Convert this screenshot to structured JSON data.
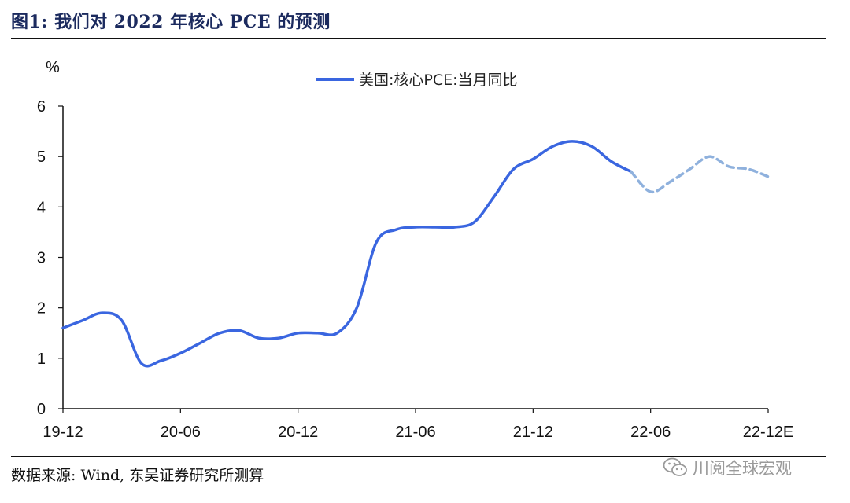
{
  "figure": {
    "title": "图1: 我们对 2022 年核心 PCE 的预测",
    "source": "数据来源: Wind, 东吴证券研究所测算",
    "watermark": "川阅全球宏观",
    "watermark_icon": "wechat-icon"
  },
  "chart_data": {
    "type": "line",
    "ylabel": "%",
    "ylim": [
      0,
      6
    ],
    "yticks": [
      "0",
      "1",
      "2",
      "3",
      "4",
      "5",
      "6"
    ],
    "xticks": [
      "19-12",
      "20-06",
      "20-12",
      "21-06",
      "21-12",
      "22-06",
      "22-12E"
    ],
    "legend_position": "top-center",
    "grid": false,
    "series": [
      {
        "name": "美国:核心PCE:当月同比",
        "color": "#3a66e0",
        "style": "solid",
        "x": [
          "19-12",
          "20-01",
          "20-02",
          "20-03",
          "20-04",
          "20-05",
          "20-06",
          "20-07",
          "20-08",
          "20-09",
          "20-10",
          "20-11",
          "20-12",
          "21-01",
          "21-02",
          "21-03",
          "21-04",
          "21-05",
          "21-06",
          "21-07",
          "21-08",
          "21-09",
          "21-10",
          "21-11",
          "21-12",
          "22-01",
          "22-02",
          "22-03",
          "22-04",
          "22-05"
        ],
        "values": [
          1.6,
          1.75,
          1.9,
          1.75,
          0.9,
          0.95,
          1.1,
          1.3,
          1.5,
          1.55,
          1.4,
          1.4,
          1.5,
          1.5,
          1.5,
          2.0,
          3.3,
          3.55,
          3.6,
          3.6,
          3.6,
          3.7,
          4.2,
          4.75,
          4.95,
          5.2,
          5.3,
          5.2,
          4.9,
          4.7
        ]
      },
      {
        "color": "#8fb1dd",
        "style": "dashed",
        "x": [
          "22-05",
          "22-06",
          "22-07",
          "22-08",
          "22-09",
          "22-10",
          "22-11",
          "22-12E"
        ],
        "values": [
          4.7,
          4.3,
          4.5,
          4.75,
          5.0,
          4.8,
          4.75,
          4.6
        ]
      }
    ]
  }
}
